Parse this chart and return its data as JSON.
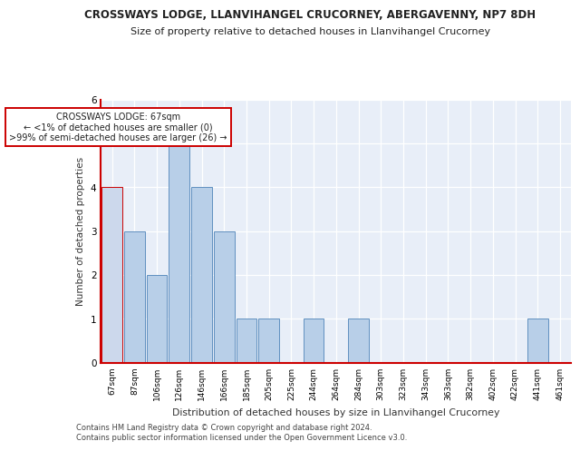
{
  "title1": "CROSSWAYS LODGE, LLANVIHANGEL CRUCORNEY, ABERGAVENNY, NP7 8DH",
  "title2": "Size of property relative to detached houses in Llanvihangel Crucorney",
  "xlabel": "Distribution of detached houses by size in Llanvihangel Crucorney",
  "ylabel": "Number of detached properties",
  "categories": [
    "67sqm",
    "87sqm",
    "106sqm",
    "126sqm",
    "146sqm",
    "166sqm",
    "185sqm",
    "205sqm",
    "225sqm",
    "244sqm",
    "264sqm",
    "284sqm",
    "303sqm",
    "323sqm",
    "343sqm",
    "363sqm",
    "382sqm",
    "402sqm",
    "422sqm",
    "441sqm",
    "461sqm"
  ],
  "values": [
    4,
    3,
    2,
    5,
    4,
    3,
    1,
    1,
    0,
    1,
    0,
    1,
    0,
    0,
    0,
    0,
    0,
    0,
    0,
    1,
    0
  ],
  "highlight_index": 0,
  "highlight_color": "#cc0000",
  "normal_bar_color": "#b8cfe8",
  "normal_bar_edge": "#6090c0",
  "highlight_bar_color": "#ccd8ec",
  "highlight_bar_edge": "#cc0000",
  "annotation_text": "CROSSWAYS LODGE: 67sqm\n← <1% of detached houses are smaller (0)\n>99% of semi-detached houses are larger (26) →",
  "annotation_box_color": "#ffffff",
  "annotation_box_edge": "#cc0000",
  "ylim": [
    0,
    6
  ],
  "yticks": [
    0,
    1,
    2,
    3,
    4,
    5,
    6
  ],
  "footer1": "Contains HM Land Registry data © Crown copyright and database right 2024.",
  "footer2": "Contains public sector information licensed under the Open Government Licence v3.0.",
  "bg_color": "#e8eef8",
  "title1_fontsize": 8.5,
  "title2_fontsize": 8.0,
  "tick_fontsize": 6.5,
  "ylabel_fontsize": 7.5,
  "xlabel_fontsize": 7.8,
  "footer_fontsize": 6.0,
  "annotation_fontsize": 7.0
}
